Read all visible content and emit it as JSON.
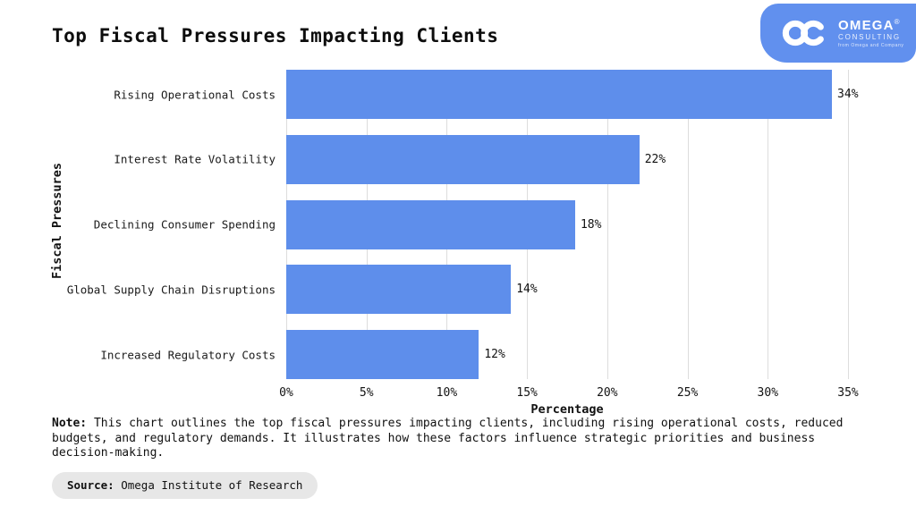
{
  "header": {
    "title": "Top Fiscal Pressures Impacting Clients"
  },
  "logo": {
    "brand": "OMEGA",
    "registered": "®",
    "subtitle": "CONSULTING",
    "tagline": "from Omega and Company",
    "bg_color": "#6190EE",
    "icon": "infinity-icon"
  },
  "chart_data": {
    "type": "bar",
    "orientation": "horizontal",
    "title": "Top Fiscal Pressures Impacting Clients",
    "categories": [
      "Rising Operational Costs",
      "Interest Rate Volatility",
      "Declining Consumer Spending",
      "Global Supply Chain Disruptions",
      "Increased Regulatory Costs"
    ],
    "values": [
      34,
      22,
      18,
      14,
      12
    ],
    "value_labels": [
      "34%",
      "22%",
      "18%",
      "14%",
      "12%"
    ],
    "xlabel": "Percentage",
    "ylabel": "Fiscal Pressures",
    "xlim": [
      0,
      35
    ],
    "xticks": [
      "0%",
      "5%",
      "10%",
      "15%",
      "20%",
      "25%",
      "30%",
      "35%"
    ],
    "grid": true,
    "legend": "none",
    "bar_color": "#5E8EEB",
    "grid_color": "#DDDDDD"
  },
  "note": {
    "label": "Note:",
    "text": " This chart outlines the top fiscal pressures impacting clients, including rising operational costs, reduced budgets, and regulatory demands. It illustrates how these factors influence strategic priorities and business decision-making."
  },
  "source": {
    "label": "Source:",
    "text": " Omega Institute of Research"
  }
}
